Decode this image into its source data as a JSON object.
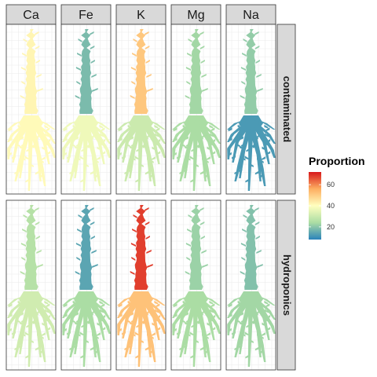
{
  "chart_data": {
    "type": "heatmap",
    "title": "",
    "columns": [
      "Ca",
      "Fe",
      "K",
      "Mg",
      "Na"
    ],
    "rows": [
      "contaminated",
      "hydroponics"
    ],
    "legend": {
      "title": "Proportion",
      "ticks": [
        "20",
        "40",
        "60"
      ],
      "tick_values": [
        20,
        40,
        60
      ],
      "range": [
        8,
        72
      ],
      "colors_low_to_high": [
        "#2b83ba",
        "#abdda4",
        "#ffffbf",
        "#fdae61",
        "#d7191c"
      ],
      "placement": "right"
    },
    "panels": [
      {
        "row": "contaminated",
        "element": "Ca",
        "shoot_proportion": 42,
        "root_proportion": 41
      },
      {
        "row": "contaminated",
        "element": "Fe",
        "shoot_proportion": 18,
        "root_proportion": 37
      },
      {
        "row": "contaminated",
        "element": "K",
        "shoot_proportion": 51,
        "root_proportion": 30
      },
      {
        "row": "contaminated",
        "element": "Mg",
        "shoot_proportion": 23,
        "root_proportion": 24
      },
      {
        "row": "contaminated",
        "element": "Na",
        "shoot_proportion": 21,
        "root_proportion": 12
      },
      {
        "row": "hydroponics",
        "element": "Ca",
        "shoot_proportion": 26,
        "root_proportion": 31
      },
      {
        "row": "hydroponics",
        "element": "Fe",
        "shoot_proportion": 14,
        "root_proportion": 24
      },
      {
        "row": "hydroponics",
        "element": "K",
        "shoot_proportion": 68,
        "root_proportion": 52
      },
      {
        "row": "hydroponics",
        "element": "Mg",
        "shoot_proportion": 22,
        "root_proportion": 24
      },
      {
        "row": "hydroponics",
        "element": "Na",
        "shoot_proportion": 19,
        "root_proportion": 23
      }
    ],
    "grid": true
  }
}
